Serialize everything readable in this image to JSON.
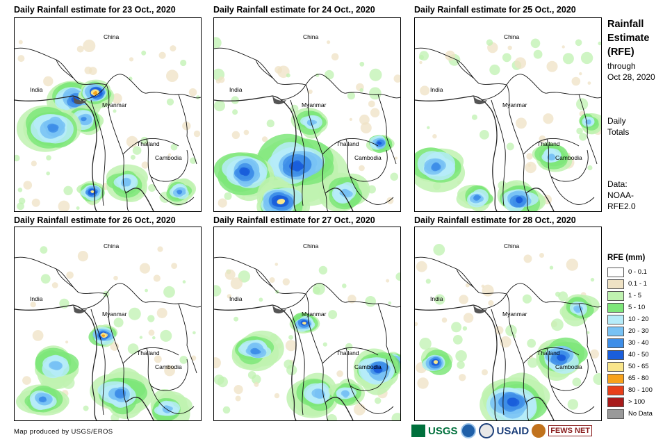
{
  "panels": [
    {
      "title": "Daily Rainfall estimate for 23 Oct., 2020",
      "storm": "north"
    },
    {
      "title": "Daily Rainfall estimate for 24 Oct., 2020",
      "storm": "none"
    },
    {
      "title": "Daily Rainfall estimate for 25 Oct., 2020",
      "storm": "none"
    },
    {
      "title": "Daily Rainfall estimate for 26 Oct., 2020",
      "storm": "myanmar"
    },
    {
      "title": "Daily Rainfall estimate for 27 Oct., 2020",
      "storm": "east"
    },
    {
      "title": "Daily Rainfall estimate for 28 Oct., 2020",
      "storm": "cambodia"
    }
  ],
  "map_labels": {
    "china": "China",
    "india": "India",
    "myanmar": "Myanmar",
    "thailand": "Thailand",
    "cambodia": "Cambodia"
  },
  "side": {
    "title_1": "Rainfall",
    "title_2": "Estimate",
    "title_3": "(RFE)",
    "sub_1": "through",
    "sub_2": "Oct 28, 2020",
    "daily_1": "Daily",
    "daily_2": "Totals",
    "data_1": "Data:",
    "data_2": "NOAA-",
    "data_3": "RFE2.0"
  },
  "legend": {
    "title": "RFE (mm)",
    "items": [
      {
        "label": "0 - 0.1",
        "color": "#ffffff"
      },
      {
        "label": "0.1 - 1",
        "color": "#efe2c4"
      },
      {
        "label": "1 - 5",
        "color": "#bff2b0"
      },
      {
        "label": "5 - 10",
        "color": "#7ee67a"
      },
      {
        "label": "10 - 20",
        "color": "#b6ecf9"
      },
      {
        "label": "20 - 30",
        "color": "#78c2f4"
      },
      {
        "label": "30 - 40",
        "color": "#3e8ee8"
      },
      {
        "label": "40 - 50",
        "color": "#1a5edb"
      },
      {
        "label": "50 - 65",
        "color": "#f9e58a"
      },
      {
        "label": "65 - 80",
        "color": "#f7a21c"
      },
      {
        "label": "80 - 100",
        "color": "#e8401a"
      },
      {
        "label": "> 100",
        "color": "#a81b1b"
      },
      {
        "label": "No Data",
        "color": "#999999"
      }
    ]
  },
  "footer": "Map produced by USGS/EROS",
  "logos": [
    "USGS",
    "USAID",
    "FEWS NET"
  ]
}
